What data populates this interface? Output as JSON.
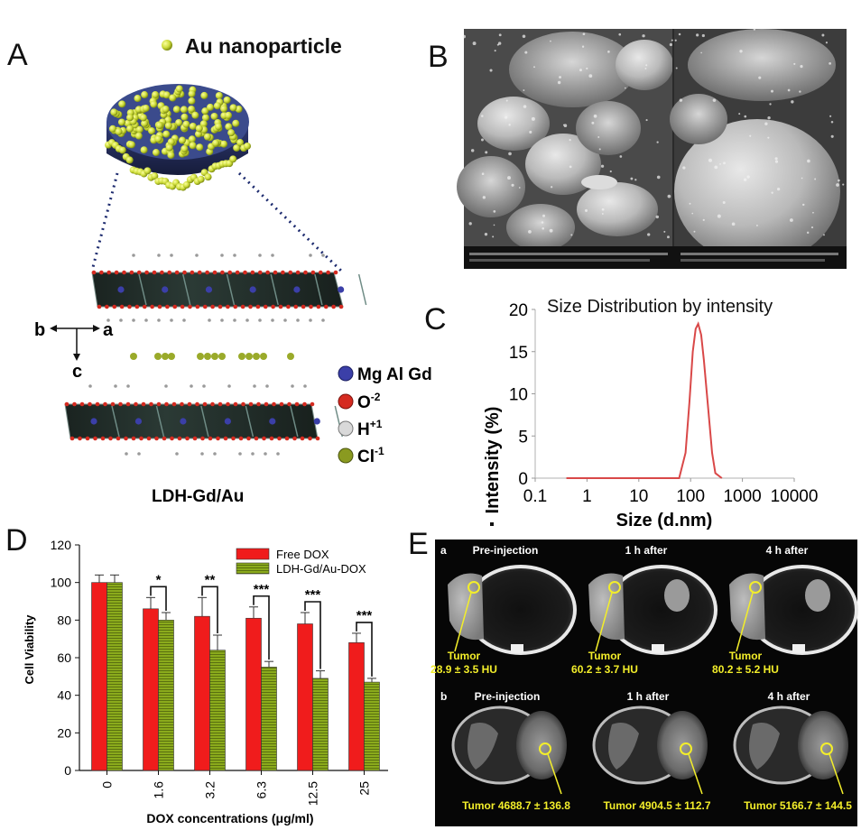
{
  "panels": {
    "A": {
      "letter": "A",
      "legend_title": "Au nanoparticle",
      "axes": {
        "b": "b",
        "a": "a",
        "c": "c"
      },
      "ion_legend": [
        {
          "label": "Mg Al Gd",
          "color": "#3b3fa8"
        },
        {
          "label": "O",
          "sup": "-2",
          "color": "#d52a20"
        },
        {
          "label": "H",
          "sup": "+1",
          "color": "#d9d9d9"
        },
        {
          "label": "Cl",
          "sup": "-1",
          "color": "#8a9a20"
        }
      ],
      "caption": "LDH-Gd/Au"
    },
    "B": {
      "letter": "B"
    },
    "C": {
      "letter": "C"
    },
    "D": {
      "letter": "D"
    },
    "E": {
      "letter": "E",
      "row_a": {
        "tag": "a",
        "headers": [
          "Pre-injection",
          "1 h after",
          "4 h after"
        ],
        "tumor_word": "Tumor",
        "values": [
          "28.9 ± 3.5 HU",
          "60.2 ± 3.7 HU",
          "80.2 ± 5.2 HU"
        ]
      },
      "row_b": {
        "tag": "b",
        "headers": [
          "Pre-injection",
          "1 h after",
          "4 h after"
        ],
        "values": [
          "Tumor 4688.7 ± 136.8",
          "Tumor 4904.5 ± 112.7",
          "Tumor 5166.7 ± 144.5"
        ]
      }
    }
  },
  "chart_data": [
    {
      "id": "C",
      "type": "line",
      "title": "Size Distribution by intensity",
      "xlabel": "Size (d.nm)",
      "ylabel": "Intensity (%)",
      "xscale": "log",
      "xlim": [
        0.1,
        10000
      ],
      "ylim": [
        0,
        20
      ],
      "xticks": [
        "0.1",
        "1",
        "10",
        "100",
        "1000",
        "10000"
      ],
      "yticks": [
        "0",
        "5",
        "10",
        "15",
        "20"
      ],
      "line_color": "#d94848",
      "x": [
        0.4,
        60,
        80,
        95,
        110,
        125,
        140,
        160,
        180,
        220,
        260,
        300,
        400
      ],
      "y": [
        0,
        0,
        3,
        9,
        15,
        17.7,
        18.3,
        17,
        14,
        8,
        3,
        0.6,
        0
      ]
    },
    {
      "id": "D",
      "type": "bar",
      "xlabel": "DOX concentrations (μg/ml)",
      "ylabel": "Cell Viability",
      "ylim": [
        0,
        120
      ],
      "yticks": [
        "0",
        "20",
        "40",
        "60",
        "80",
        "100",
        "120"
      ],
      "categories": [
        "0",
        "1.6",
        "3.2",
        "6.3",
        "12.5",
        "25"
      ],
      "series": [
        {
          "name": "Free DOX",
          "color": "#f01c1c",
          "values": [
            100,
            86,
            82,
            81,
            78,
            68
          ],
          "errors": [
            4,
            6,
            10,
            6,
            6,
            5
          ]
        },
        {
          "name": "LDH-Gd/Au-DOX",
          "color": "#8bab1c",
          "values": [
            100,
            80,
            64,
            55,
            49,
            47
          ],
          "errors": [
            4,
            4,
            8,
            3,
            4,
            2
          ]
        }
      ],
      "significance": [
        "",
        "*",
        "**",
        "***",
        "***",
        "***"
      ],
      "legend_position": "top-right"
    }
  ]
}
